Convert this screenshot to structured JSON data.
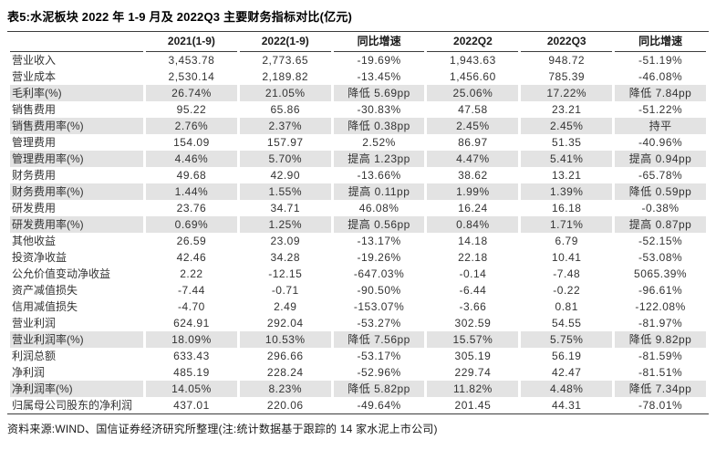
{
  "title": "表5:水泥板块 2022 年 1-9 月及 2022Q3 主要财务指标对比(亿元)",
  "source_note": "资料来源:WIND、国信证券经济研究所整理(注:统计数据基于跟踪的 14 家水泥上市公司)",
  "colors": {
    "row_shade": "#e3e3e3",
    "rule": "#3c3c3c",
    "text": "#262626"
  },
  "table": {
    "columns": [
      "",
      "2021(1-9)",
      "2022(1-9)",
      "同比增速",
      "2022Q2",
      "2022Q3",
      "同比增速"
    ],
    "rows": [
      {
        "label": "营业收入",
        "values": [
          "3,453.78",
          "2,773.65",
          "-19.69%",
          "1,943.63",
          "948.72",
          "-51.19%"
        ],
        "shaded": false
      },
      {
        "label": "营业成本",
        "values": [
          "2,530.14",
          "2,189.82",
          "-13.45%",
          "1,456.60",
          "785.39",
          "-46.08%"
        ],
        "shaded": false
      },
      {
        "label": "毛利率(%)",
        "values": [
          "26.74%",
          "21.05%",
          "降低 5.69pp",
          "25.06%",
          "17.22%",
          "降低 7.84pp"
        ],
        "shaded": true
      },
      {
        "label": "销售费用",
        "values": [
          "95.22",
          "65.86",
          "-30.83%",
          "47.58",
          "23.21",
          "-51.22%"
        ],
        "shaded": false
      },
      {
        "label": "销售费用率(%)",
        "values": [
          "2.76%",
          "2.37%",
          "降低 0.38pp",
          "2.45%",
          "2.45%",
          "持平"
        ],
        "shaded": true
      },
      {
        "label": "管理费用",
        "values": [
          "154.09",
          "157.97",
          "2.52%",
          "86.97",
          "51.35",
          "-40.96%"
        ],
        "shaded": false
      },
      {
        "label": "管理费用率(%)",
        "values": [
          "4.46%",
          "5.70%",
          "提高 1.23pp",
          "4.47%",
          "5.41%",
          "提高 0.94pp"
        ],
        "shaded": true
      },
      {
        "label": "财务费用",
        "values": [
          "49.68",
          "42.90",
          "-13.66%",
          "38.62",
          "13.21",
          "-65.78%"
        ],
        "shaded": false
      },
      {
        "label": "财务费用率(%)",
        "values": [
          "1.44%",
          "1.55%",
          "提高 0.11pp",
          "1.99%",
          "1.39%",
          "降低 0.59pp"
        ],
        "shaded": true
      },
      {
        "label": "研发费用",
        "values": [
          "23.76",
          "34.71",
          "46.08%",
          "16.24",
          "16.18",
          "-0.38%"
        ],
        "shaded": false
      },
      {
        "label": "研发费用率(%)",
        "values": [
          "0.69%",
          "1.25%",
          "提高 0.56pp",
          "0.84%",
          "1.71%",
          "提高 0.87pp"
        ],
        "shaded": true
      },
      {
        "label": "其他收益",
        "values": [
          "26.59",
          "23.09",
          "-13.17%",
          "14.18",
          "6.79",
          "-52.15%"
        ],
        "shaded": false
      },
      {
        "label": "投资净收益",
        "values": [
          "42.46",
          "34.28",
          "-19.26%",
          "22.18",
          "10.41",
          "-53.08%"
        ],
        "shaded": false
      },
      {
        "label": "公允价值变动净收益",
        "values": [
          "2.22",
          "-12.15",
          "-647.03%",
          "-0.14",
          "-7.48",
          "5065.39%"
        ],
        "shaded": false
      },
      {
        "label": "资产减值损失",
        "values": [
          "-7.44",
          "-0.71",
          "-90.50%",
          "-6.44",
          "-0.22",
          "-96.61%"
        ],
        "shaded": false
      },
      {
        "label": "信用减值损失",
        "values": [
          "-4.70",
          "2.49",
          "-153.07%",
          "-3.66",
          "0.81",
          "-122.08%"
        ],
        "shaded": false
      },
      {
        "label": "营业利润",
        "values": [
          "624.91",
          "292.04",
          "-53.27%",
          "302.59",
          "54.55",
          "-81.97%"
        ],
        "shaded": false
      },
      {
        "label": "营业利润率(%)",
        "values": [
          "18.09%",
          "10.53%",
          "降低 7.56pp",
          "15.57%",
          "5.75%",
          "降低 9.82pp"
        ],
        "shaded": true
      },
      {
        "label": "利润总额",
        "values": [
          "633.43",
          "296.66",
          "-53.17%",
          "305.19",
          "56.19",
          "-81.59%"
        ],
        "shaded": false
      },
      {
        "label": "净利润",
        "values": [
          "485.19",
          "228.24",
          "-52.96%",
          "229.74",
          "42.47",
          "-81.51%"
        ],
        "shaded": false
      },
      {
        "label": "净利润率(%)",
        "values": [
          "14.05%",
          "8.23%",
          "降低 5.82pp",
          "11.82%",
          "4.48%",
          "降低 7.34pp"
        ],
        "shaded": true
      },
      {
        "label": "归属母公司股东的净利润",
        "values": [
          "437.01",
          "220.06",
          "-49.64%",
          "201.45",
          "44.31",
          "-78.01%"
        ],
        "shaded": false
      }
    ]
  }
}
